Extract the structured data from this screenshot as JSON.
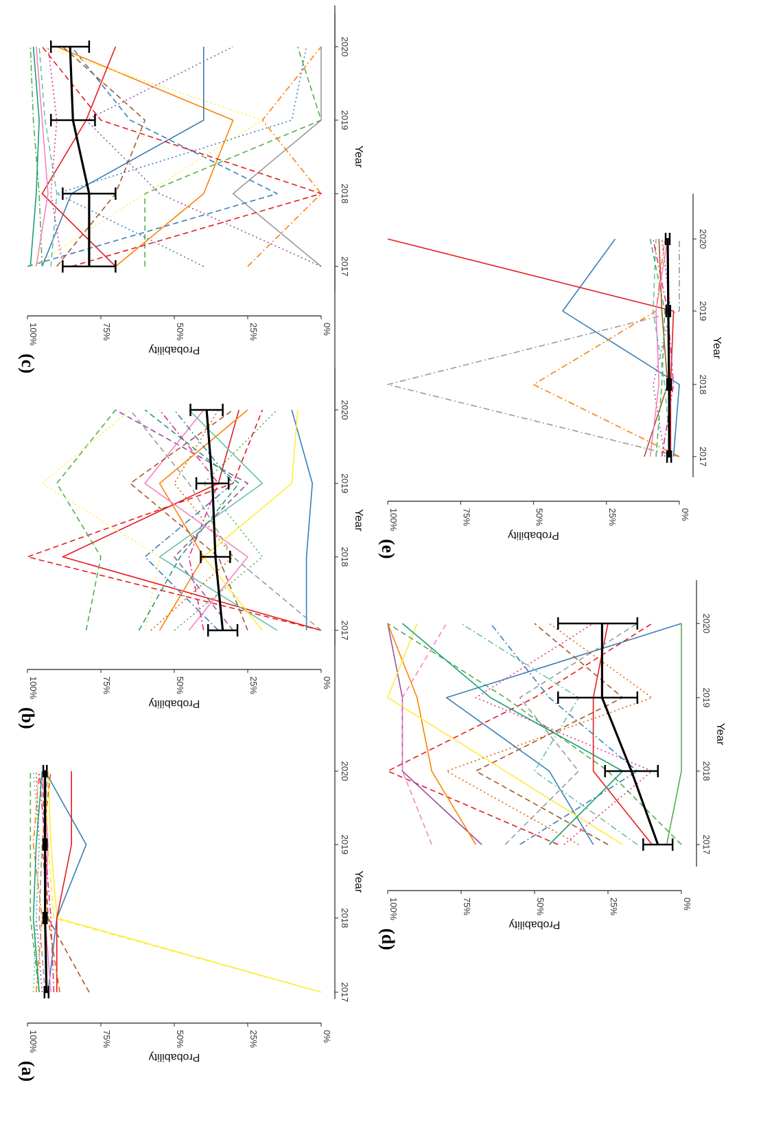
{
  "chart_data": [
    {
      "type": "line",
      "panel": "(a)",
      "xlabel": "Year",
      "ylabel": "Probability",
      "x": [
        "2017",
        "2018",
        "2019",
        "2020"
      ],
      "y_ticks": [
        "0%",
        "25%",
        "50%",
        "75%",
        "100%"
      ],
      "ylim": [
        0,
        100
      ],
      "mean": [
        93.5,
        94,
        94,
        94
      ],
      "error": [
        [
          92.8,
          94.2
        ],
        [
          93.4,
          94.6
        ],
        [
          93.4,
          94.6
        ],
        [
          93.4,
          94.6
        ]
      ],
      "series": [
        {
          "values": [
            0,
            90,
            92,
            93
          ],
          "color": "#ffeb3b",
          "dash": "solid"
        },
        {
          "values": [
            0,
            91,
            93,
            94
          ],
          "color": "#ffeb3b",
          "dash": "dashed"
        },
        {
          "values": [
            79,
            93,
            94,
            95
          ],
          "color": "#a65628",
          "dash": "dashed"
        },
        {
          "values": [
            93,
            90,
            80,
            94
          ],
          "color": "#377eb8",
          "dash": "solid"
        },
        {
          "values": [
            90,
            90,
            85,
            85
          ],
          "color": "#e41a1c",
          "dash": "solid"
        },
        {
          "values": [
            96,
            99,
            99,
            99
          ],
          "color": "#4daf4a",
          "dash": "dashed"
        },
        {
          "values": [
            95,
            97,
            96,
            97
          ],
          "color": "#984ea3",
          "dash": "dotted"
        },
        {
          "values": [
            97,
            95,
            98,
            96
          ],
          "color": "#ff7f00",
          "dash": "dashdot"
        },
        {
          "values": [
            92,
            94,
            93,
            95
          ],
          "color": "#f781bf",
          "dash": "solid"
        },
        {
          "values": [
            94,
            96,
            95,
            93
          ],
          "color": "#999999",
          "dash": "dashed"
        },
        {
          "values": [
            98,
            97,
            96,
            98
          ],
          "color": "#66c2a5",
          "dash": "dotted"
        },
        {
          "values": [
            91,
            92,
            94,
            96
          ],
          "color": "#e7298a",
          "dash": "dashdot"
        },
        {
          "values": [
            96,
            98,
            97,
            95
          ],
          "color": "#1b9e77",
          "dash": "solid"
        },
        {
          "values": [
            89,
            93,
            95,
            92
          ],
          "color": "#d95f02",
          "dash": "dashed"
        }
      ]
    },
    {
      "type": "line",
      "panel": "(b)",
      "xlabel": "Year",
      "ylabel": "Probability",
      "x": [
        "2017",
        "2018",
        "2019",
        "2020"
      ],
      "y_ticks": [
        "0%",
        "25%",
        "50%",
        "75%",
        "100%"
      ],
      "ylim": [
        0,
        100
      ],
      "mean": [
        33.5,
        36,
        37,
        39
      ],
      "error": [
        [
          28.5,
          38.5
        ],
        [
          31,
          41
        ],
        [
          31.5,
          42.5
        ],
        [
          33.5,
          44.5
        ]
      ],
      "series": [
        {
          "values": [
            0,
            100,
            30,
            20
          ],
          "color": "#e41a1c",
          "dash": "dashed"
        },
        {
          "values": [
            0,
            88,
            35,
            28
          ],
          "color": "#e41a1c",
          "dash": "solid"
        },
        {
          "values": [
            80,
            75,
            90,
            70
          ],
          "color": "#4daf4a",
          "dash": "dashed"
        },
        {
          "values": [
            60,
            55,
            95,
            65
          ],
          "color": "#ffeb3b",
          "dash": "dotted"
        },
        {
          "values": [
            5,
            5,
            3,
            10
          ],
          "color": "#377eb8",
          "dash": "solid"
        },
        {
          "values": [
            55,
            40,
            55,
            25
          ],
          "color": "#ff7f00",
          "dash": "solid"
        },
        {
          "values": [
            30,
            50,
            25,
            70
          ],
          "color": "#984ea3",
          "dash": "dashed"
        },
        {
          "values": [
            45,
            25,
            60,
            40
          ],
          "color": "#f781bf",
          "dash": "solid"
        },
        {
          "values": [
            0,
            30,
            45,
            65
          ],
          "color": "#999999",
          "dash": "dashed"
        },
        {
          "values": [
            35,
            60,
            30,
            50
          ],
          "color": "#377eb8",
          "dash": "dashdot"
        },
        {
          "values": [
            25,
            35,
            65,
            30
          ],
          "color": "#a65628",
          "dash": "dashed"
        },
        {
          "values": [
            50,
            20,
            40,
            15
          ],
          "color": "#4daf4a",
          "dash": "dotted"
        },
        {
          "values": [
            40,
            45,
            35,
            55
          ],
          "color": "#e7298a",
          "dash": "dashdot"
        },
        {
          "values": [
            15,
            55,
            20,
            45
          ],
          "color": "#66c2a5",
          "dash": "solid"
        },
        {
          "values": [
            58,
            30,
            50,
            35
          ],
          "color": "#d95f02",
          "dash": "dotted"
        },
        {
          "values": [
            20,
            40,
            10,
            8
          ],
          "color": "#ffeb3b",
          "dash": "solid"
        },
        {
          "values": [
            62,
            48,
            28,
            60
          ],
          "color": "#1b9e77",
          "dash": "dashed"
        }
      ]
    },
    {
      "type": "line",
      "panel": "(c)",
      "xlabel": "Year",
      "ylabel": "Probability",
      "x": [
        "2017",
        "2018",
        "2019",
        "2020"
      ],
      "y_ticks": [
        "0%",
        "25%",
        "50%",
        "75%",
        "100%"
      ],
      "ylim": [
        0,
        100
      ],
      "mean": [
        79,
        79,
        84.5,
        85.5
      ],
      "error": [
        [
          70,
          88
        ],
        [
          70,
          88
        ],
        [
          77,
          92
        ],
        [
          79,
          92
        ]
      ],
      "series": [
        {
          "values": [
            0,
            30,
            0,
            0
          ],
          "color": "#999999",
          "dash": "solid"
        },
        {
          "values": [
            100,
            15,
            65,
            85
          ],
          "color": "#377eb8",
          "dash": "dashed"
        },
        {
          "values": [
            70,
            40,
            30,
            90
          ],
          "color": "#ff7f00",
          "dash": "solid"
        },
        {
          "values": [
            60,
            60,
            0,
            8
          ],
          "color": "#4daf4a",
          "dash": "dashed"
        },
        {
          "values": [
            98,
            60,
            20,
            95
          ],
          "color": "#ffeb3b",
          "dash": "dotted"
        },
        {
          "values": [
            95,
            85,
            40,
            40
          ],
          "color": "#377eb8",
          "dash": "solid"
        },
        {
          "values": [
            70,
            95,
            80,
            70
          ],
          "color": "#e41a1c",
          "dash": "solid"
        },
        {
          "values": [
            25,
            0,
            20,
            0
          ],
          "color": "#ff7f00",
          "dash": "dashdot"
        },
        {
          "values": [
            0,
            55,
            80,
            30
          ],
          "color": "#984ea3",
          "dash": "dotted"
        },
        {
          "values": [
            90,
            70,
            60,
            88
          ],
          "color": "#a65628",
          "dash": "dashed"
        },
        {
          "values": [
            85,
            0,
            75,
            95
          ],
          "color": "#e41a1c",
          "dash": "dashed"
        },
        {
          "values": [
            40,
            90,
            10,
            5
          ],
          "color": "#377eb8",
          "dash": "dotted"
        },
        {
          "values": [
            95,
            96,
            98,
            99
          ],
          "color": "#4daf4a",
          "dash": "dashdot"
        },
        {
          "values": [
            97,
            93,
            95,
            97
          ],
          "color": "#f781bf",
          "dash": "solid"
        },
        {
          "values": [
            92,
            90,
            94,
            96
          ],
          "color": "#66c2a5",
          "dash": "dashed"
        },
        {
          "values": [
            99,
            97,
            96,
            98
          ],
          "color": "#1b9e77",
          "dash": "solid"
        },
        {
          "values": [
            88,
            92,
            90,
            93
          ],
          "color": "#e7298a",
          "dash": "dotted"
        }
      ]
    },
    {
      "type": "line",
      "panel": "(d)",
      "xlabel": "Year",
      "ylabel": "Probability",
      "x": [
        "2017",
        "2018",
        "2019",
        "2020"
      ],
      "y_ticks": [
        "0%",
        "25%",
        "50%",
        "75%",
        "100%"
      ],
      "ylim": [
        0,
        100
      ],
      "mean": [
        8,
        17,
        27,
        27
      ],
      "error": [
        [
          3,
          13
        ],
        [
          8,
          26
        ],
        [
          15,
          42
        ],
        [
          15,
          42
        ]
      ],
      "series": [
        {
          "values": [
            30,
            45,
            80,
            0
          ],
          "color": "#377eb8",
          "dash": "solid"
        },
        {
          "values": [
            42,
            100,
            50,
            10
          ],
          "color": "#e41a1c",
          "dash": "dashed"
        },
        {
          "values": [
            68,
            95,
            95,
            100
          ],
          "color": "#984ea3",
          "dash": "solid"
        },
        {
          "values": [
            70,
            85,
            90,
            100
          ],
          "color": "#ff7f00",
          "dash": "solid"
        },
        {
          "values": [
            20,
            60,
            100,
            90
          ],
          "color": "#ffeb3b",
          "dash": "solid"
        },
        {
          "values": [
            85,
            95,
            95,
            80
          ],
          "color": "#f781bf",
          "dash": "dashed"
        },
        {
          "values": [
            0,
            25,
            60,
            100
          ],
          "color": "#4daf4a",
          "dash": "dashed"
        },
        {
          "values": [
            10,
            30,
            30,
            25
          ],
          "color": "#e41a1c",
          "dash": "solid"
        },
        {
          "values": [
            5,
            0,
            0,
            0
          ],
          "color": "#4daf4a",
          "dash": "solid"
        },
        {
          "values": [
            55,
            15,
            45,
            65
          ],
          "color": "#377eb8",
          "dash": "dashdot"
        },
        {
          "values": [
            25,
            70,
            20,
            50
          ],
          "color": "#a65628",
          "dash": "dashed"
        },
        {
          "values": [
            40,
            10,
            70,
            30
          ],
          "color": "#e7298a",
          "dash": "dotted"
        },
        {
          "values": [
            15,
            50,
            35,
            75
          ],
          "color": "#66c2a5",
          "dash": "dashdot"
        },
        {
          "values": [
            60,
            35,
            55,
            15
          ],
          "color": "#999999",
          "dash": "dashed"
        },
        {
          "values": [
            35,
            80,
            10,
            45
          ],
          "color": "#d95f02",
          "dash": "dotted"
        },
        {
          "values": [
            45,
            20,
            65,
            95
          ],
          "color": "#1b9e77",
          "dash": "solid"
        }
      ]
    },
    {
      "type": "line",
      "panel": "(e)",
      "xlabel": "Year",
      "ylabel": "Probability",
      "x": [
        "2017",
        "2018",
        "2019",
        "2020"
      ],
      "y_ticks": [
        "0%",
        "25%",
        "50%",
        "75%",
        "100%"
      ],
      "ylim": [
        0,
        100
      ],
      "mean": [
        3.5,
        3.5,
        3.8,
        4
      ],
      "error": [
        [
          2.8,
          4.2
        ],
        [
          2.8,
          4.2
        ],
        [
          3.1,
          4.5
        ],
        [
          3.3,
          4.7
        ]
      ],
      "series": [
        {
          "values": [
            0,
            100,
            0,
            0
          ],
          "color": "#999999",
          "dash": "dashdot"
        },
        {
          "values": [
            2,
            0,
            40,
            22
          ],
          "color": "#377eb8",
          "dash": "solid"
        },
        {
          "values": [
            3,
            3,
            2,
            100
          ],
          "color": "#e41a1c",
          "dash": "solid"
        },
        {
          "values": [
            0,
            50,
            8,
            5
          ],
          "color": "#ff7f00",
          "dash": "dashdot"
        },
        {
          "values": [
            12,
            4,
            6,
            7
          ],
          "color": "#a65628",
          "dash": "solid"
        },
        {
          "values": [
            8,
            6,
            5,
            10
          ],
          "color": "#4daf4a",
          "dash": "dashed"
        },
        {
          "values": [
            5,
            9,
            3,
            6
          ],
          "color": "#984ea3",
          "dash": "dotted"
        },
        {
          "values": [
            10,
            7,
            8,
            4
          ],
          "color": "#f781bf",
          "dash": "solid"
        },
        {
          "values": [
            3,
            5,
            9,
            8
          ],
          "color": "#66c2a5",
          "dash": "dashed"
        },
        {
          "values": [
            6,
            2,
            4,
            9
          ],
          "color": "#e7298a",
          "dash": "dashdot"
        }
      ]
    }
  ]
}
